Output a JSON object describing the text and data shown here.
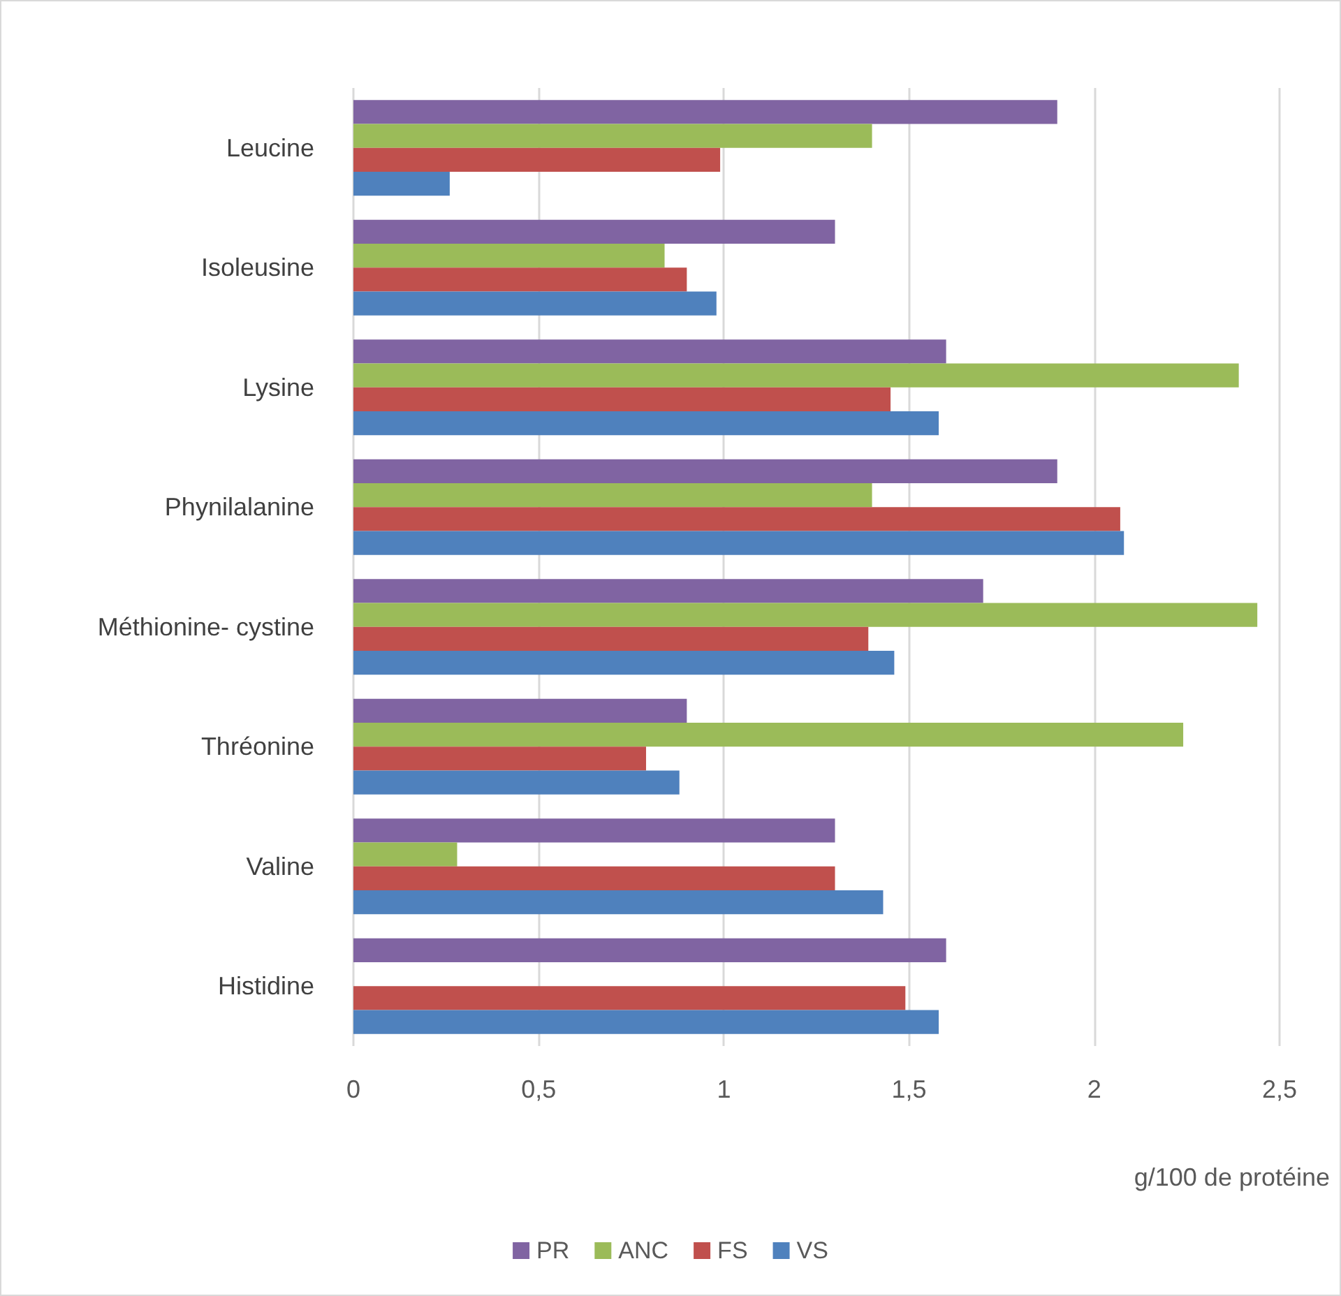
{
  "chart_data": {
    "type": "bar",
    "orientation": "horizontal",
    "xlabel": "g/100 de protéine",
    "categories": [
      "Leucine",
      "Isoleusine",
      "Lysine",
      "Phynilalanine",
      "Méthionine- cystine",
      "Thréonine",
      "Valine",
      "Histidine"
    ],
    "series": [
      {
        "name": "PR",
        "color": "#8064a2",
        "values": [
          1.9,
          1.3,
          1.6,
          1.9,
          1.7,
          0.9,
          1.3,
          1.6
        ]
      },
      {
        "name": "ANC",
        "color": "#9bbb59",
        "values": [
          1.4,
          0.84,
          2.39,
          1.4,
          2.44,
          2.24,
          0.28,
          null
        ]
      },
      {
        "name": "FS",
        "color": "#c0504d",
        "values": [
          0.99,
          0.9,
          1.45,
          2.07,
          1.39,
          0.79,
          1.3,
          1.49
        ]
      },
      {
        "name": "VS",
        "color": "#4f81bd",
        "values": [
          0.26,
          0.98,
          1.58,
          2.08,
          1.46,
          0.88,
          1.43,
          1.58
        ]
      }
    ],
    "xlim": [
      0,
      2.5
    ],
    "xticks": [
      0,
      {
        "value": 0.5,
        "label": "0,5"
      },
      1,
      {
        "value": 1.5,
        "label": "1,5"
      },
      2,
      {
        "value": 2.5,
        "label": "2,5"
      }
    ],
    "grid": "x",
    "legend": "bottom"
  }
}
